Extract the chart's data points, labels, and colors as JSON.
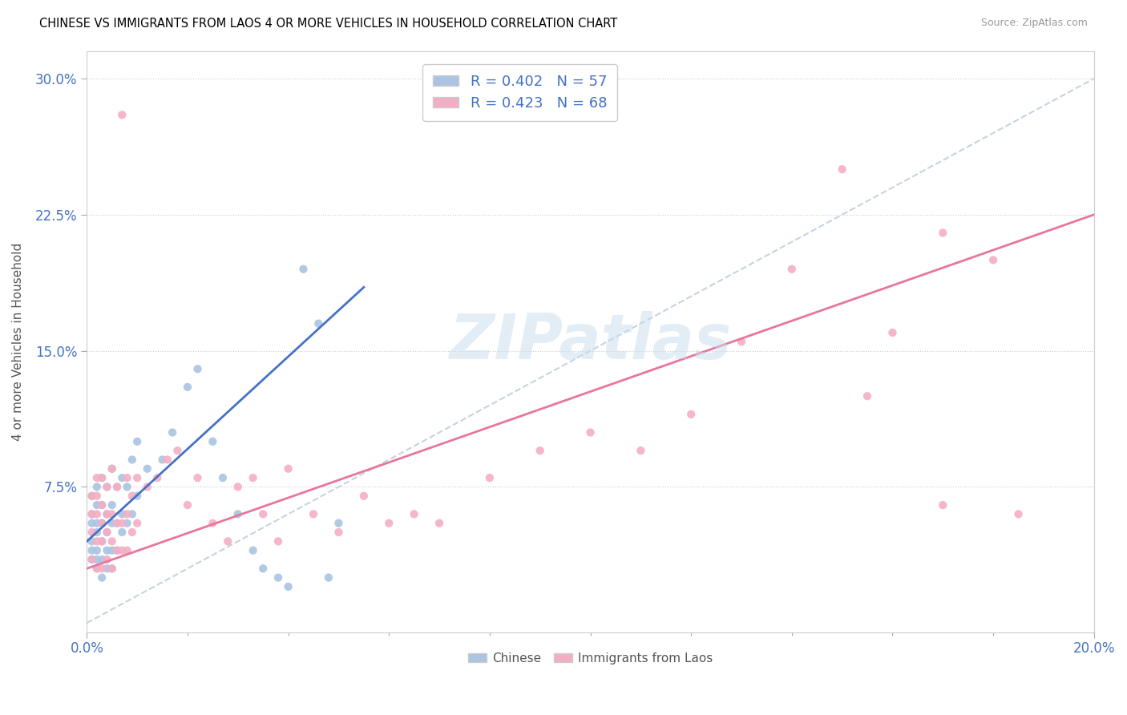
{
  "title": "CHINESE VS IMMIGRANTS FROM LAOS 4 OR MORE VEHICLES IN HOUSEHOLD CORRELATION CHART",
  "source": "Source: ZipAtlas.com",
  "ylabel": "4 or more Vehicles in Household",
  "xlim": [
    0.0,
    0.2
  ],
  "ylim": [
    -0.005,
    0.315
  ],
  "x_ticks": [
    0.0,
    0.2
  ],
  "x_tick_labels": [
    "0.0%",
    "20.0%"
  ],
  "y_ticks": [
    0.075,
    0.15,
    0.225,
    0.3
  ],
  "y_tick_labels": [
    "7.5%",
    "15.0%",
    "22.5%",
    "30.0%"
  ],
  "legend_r1": "R = 0.402",
  "legend_n1": "N = 57",
  "legend_r2": "R = 0.423",
  "legend_n2": "N = 68",
  "color_chinese": "#aac4e2",
  "color_laos": "#f4aec4",
  "color_line_chinese": "#4472c4",
  "color_line_laos": "#e8769a",
  "color_dashed": "#b8c8d8",
  "color_text_blue": "#4472c4",
  "watermark_text": "ZIPatlas",
  "chinese_line_x": [
    0.0,
    0.055
  ],
  "chinese_line_y": [
    0.045,
    0.185
  ],
  "laos_line_x": [
    0.0,
    0.2
  ],
  "laos_line_y": [
    0.03,
    0.225
  ],
  "dash_line_x": [
    0.0,
    0.2
  ],
  "dash_line_y": [
    0.0,
    0.3
  ],
  "chinese_points_x": [
    0.001,
    0.001,
    0.001,
    0.001,
    0.001,
    0.001,
    0.002,
    0.002,
    0.002,
    0.002,
    0.002,
    0.002,
    0.002,
    0.003,
    0.003,
    0.003,
    0.003,
    0.003,
    0.003,
    0.004,
    0.004,
    0.004,
    0.004,
    0.004,
    0.005,
    0.005,
    0.005,
    0.005,
    0.005,
    0.006,
    0.006,
    0.006,
    0.007,
    0.007,
    0.007,
    0.008,
    0.008,
    0.009,
    0.009,
    0.01,
    0.01,
    0.012,
    0.015,
    0.017,
    0.02,
    0.022,
    0.025,
    0.027,
    0.03,
    0.033,
    0.035,
    0.038,
    0.04,
    0.043,
    0.046,
    0.048,
    0.05
  ],
  "chinese_points_y": [
    0.035,
    0.04,
    0.045,
    0.055,
    0.06,
    0.07,
    0.03,
    0.035,
    0.04,
    0.05,
    0.055,
    0.065,
    0.075,
    0.025,
    0.035,
    0.045,
    0.055,
    0.065,
    0.08,
    0.03,
    0.04,
    0.05,
    0.06,
    0.075,
    0.03,
    0.04,
    0.055,
    0.065,
    0.085,
    0.04,
    0.055,
    0.075,
    0.05,
    0.06,
    0.08,
    0.055,
    0.075,
    0.06,
    0.09,
    0.07,
    0.1,
    0.085,
    0.09,
    0.105,
    0.13,
    0.14,
    0.1,
    0.08,
    0.06,
    0.04,
    0.03,
    0.025,
    0.02,
    0.195,
    0.165,
    0.025,
    0.055
  ],
  "laos_points_x": [
    0.001,
    0.001,
    0.001,
    0.001,
    0.002,
    0.002,
    0.002,
    0.002,
    0.002,
    0.003,
    0.003,
    0.003,
    0.003,
    0.003,
    0.004,
    0.004,
    0.004,
    0.004,
    0.005,
    0.005,
    0.005,
    0.005,
    0.006,
    0.006,
    0.006,
    0.007,
    0.007,
    0.007,
    0.008,
    0.008,
    0.008,
    0.009,
    0.009,
    0.01,
    0.01,
    0.012,
    0.014,
    0.016,
    0.018,
    0.02,
    0.022,
    0.025,
    0.028,
    0.03,
    0.033,
    0.035,
    0.038,
    0.04,
    0.045,
    0.05,
    0.055,
    0.06,
    0.065,
    0.07,
    0.08,
    0.09,
    0.1,
    0.11,
    0.12,
    0.13,
    0.14,
    0.15,
    0.16,
    0.17,
    0.18,
    0.155,
    0.17,
    0.185
  ],
  "laos_points_y": [
    0.035,
    0.05,
    0.06,
    0.07,
    0.03,
    0.045,
    0.06,
    0.07,
    0.08,
    0.03,
    0.045,
    0.055,
    0.065,
    0.08,
    0.035,
    0.05,
    0.06,
    0.075,
    0.03,
    0.045,
    0.06,
    0.085,
    0.04,
    0.055,
    0.075,
    0.04,
    0.055,
    0.28,
    0.04,
    0.06,
    0.08,
    0.05,
    0.07,
    0.055,
    0.08,
    0.075,
    0.08,
    0.09,
    0.095,
    0.065,
    0.08,
    0.055,
    0.045,
    0.075,
    0.08,
    0.06,
    0.045,
    0.085,
    0.06,
    0.05,
    0.07,
    0.055,
    0.06,
    0.055,
    0.08,
    0.095,
    0.105,
    0.095,
    0.115,
    0.155,
    0.195,
    0.25,
    0.16,
    0.065,
    0.2,
    0.125,
    0.215,
    0.06
  ]
}
